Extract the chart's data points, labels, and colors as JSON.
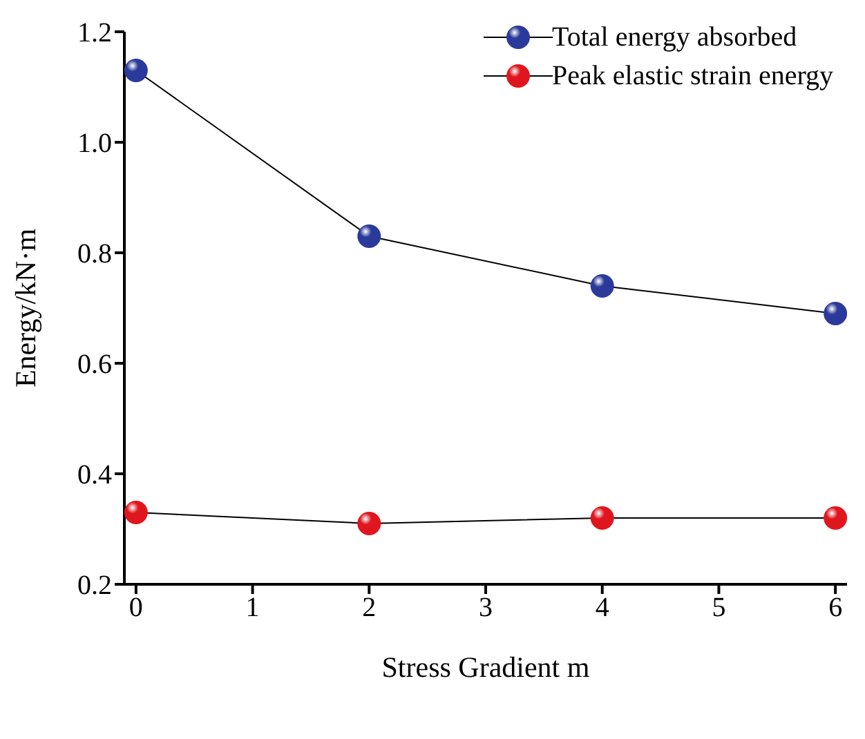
{
  "chart_data": {
    "type": "line",
    "xlabel": "Stress Gradient  m",
    "ylabel": "Energy/kN·m",
    "x": [
      0,
      2,
      4,
      6
    ],
    "series": [
      {
        "name": "Total energy absorbed",
        "color": "#2b3a9a",
        "values": [
          1.13,
          0.83,
          0.74,
          0.69
        ]
      },
      {
        "name": "Peak elastic strain energy",
        "color": "#e0161e",
        "values": [
          0.33,
          0.31,
          0.32,
          0.32
        ]
      }
    ],
    "xlim": [
      -0.1,
      6.1
    ],
    "xticks": [
      0,
      1,
      2,
      3,
      4,
      5,
      6
    ],
    "ylim": [
      0.2,
      1.2
    ],
    "yticks": [
      0.2,
      0.4,
      0.6,
      0.8,
      {
        "value": 1,
        "label": "1.0"
      },
      1.2
    ],
    "grid": false,
    "legend": "top right",
    "marker": "circle",
    "line_style": "solid"
  }
}
